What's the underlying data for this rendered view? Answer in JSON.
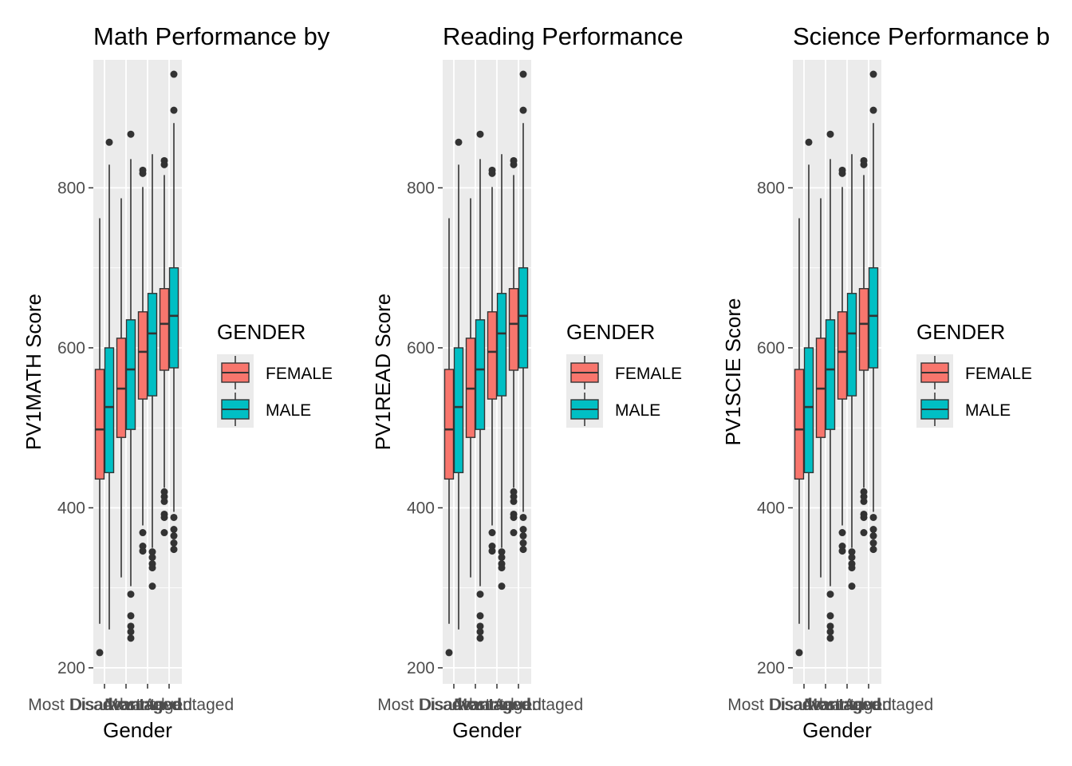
{
  "chart_data": [
    {
      "type": "boxplot",
      "title": "Math Performance by",
      "xlabel": "Gender",
      "ylabel": "PV1MATH Score",
      "y_ticks": [
        200,
        400,
        600,
        800
      ],
      "ylim": [
        180,
        960
      ],
      "x_tick_text": [
        "Most Disadvantaged",
        "Disadvantaged",
        "Advantaged",
        "Most Advantaged"
      ],
      "legend_title": "GENDER",
      "legend_entries": [
        "FEMALE",
        "MALE"
      ],
      "series_colors": {
        "FEMALE": "#F8766D",
        "MALE": "#00BFC4"
      },
      "boxes": [
        {
          "group": 0,
          "gender": "FEMALE",
          "whisker_low": 255,
          "q1": 436,
          "median": 498,
          "q3": 573,
          "whisker_high": 762,
          "outliers": [
            219
          ]
        },
        {
          "group": 0,
          "gender": "MALE",
          "whisker_low": 248,
          "q1": 444,
          "median": 526,
          "q3": 600,
          "whisker_high": 829,
          "outliers": [
            857
          ]
        },
        {
          "group": 1,
          "gender": "FEMALE",
          "whisker_low": 313,
          "q1": 488,
          "median": 549,
          "q3": 612,
          "whisker_high": 787,
          "outliers": []
        },
        {
          "group": 1,
          "gender": "MALE",
          "whisker_low": 302,
          "q1": 498,
          "median": 573,
          "q3": 635,
          "whisker_high": 836,
          "outliers": [
            867,
            292,
            265,
            252,
            245,
            237
          ]
        },
        {
          "group": 2,
          "gender": "FEMALE",
          "whisker_low": 378,
          "q1": 536,
          "median": 595,
          "q3": 645,
          "whisker_high": 801,
          "outliers": [
            822,
            818,
            369,
            352,
            346
          ]
        },
        {
          "group": 2,
          "gender": "MALE",
          "whisker_low": 350,
          "q1": 540,
          "median": 618,
          "q3": 668,
          "whisker_high": 842,
          "outliers": [
            345,
            338,
            330,
            325,
            302
          ]
        },
        {
          "group": 3,
          "gender": "FEMALE",
          "whisker_low": 425,
          "q1": 572,
          "median": 630,
          "q3": 674,
          "whisker_high": 816,
          "outliers": [
            834,
            829,
            420,
            414,
            408,
            392,
            388,
            369
          ]
        },
        {
          "group": 3,
          "gender": "MALE",
          "whisker_low": 395,
          "q1": 575,
          "median": 640,
          "q3": 700,
          "whisker_high": 881,
          "outliers": [
            942,
            897,
            388,
            373,
            365,
            356,
            348
          ]
        }
      ]
    },
    {
      "type": "boxplot",
      "title": "Reading Performance",
      "xlabel": "Gender",
      "ylabel": "PV1READ Score",
      "y_ticks": [
        200,
        400,
        600,
        800
      ],
      "ylim": [
        180,
        960
      ],
      "x_tick_text": [
        "Most Disadvantaged",
        "Disadvantaged",
        "Advantaged",
        "Most Advantaged"
      ],
      "legend_title": "GENDER",
      "legend_entries": [
        "FEMALE",
        "MALE"
      ],
      "series_colors": {
        "FEMALE": "#F8766D",
        "MALE": "#00BFC4"
      },
      "boxes": [
        {
          "group": 0,
          "gender": "FEMALE",
          "whisker_low": 255,
          "q1": 436,
          "median": 498,
          "q3": 573,
          "whisker_high": 762,
          "outliers": [
            219
          ]
        },
        {
          "group": 0,
          "gender": "MALE",
          "whisker_low": 248,
          "q1": 444,
          "median": 526,
          "q3": 600,
          "whisker_high": 829,
          "outliers": [
            857
          ]
        },
        {
          "group": 1,
          "gender": "FEMALE",
          "whisker_low": 313,
          "q1": 488,
          "median": 549,
          "q3": 612,
          "whisker_high": 787,
          "outliers": []
        },
        {
          "group": 1,
          "gender": "MALE",
          "whisker_low": 302,
          "q1": 498,
          "median": 573,
          "q3": 635,
          "whisker_high": 836,
          "outliers": [
            867,
            292,
            265,
            252,
            245,
            237
          ]
        },
        {
          "group": 2,
          "gender": "FEMALE",
          "whisker_low": 378,
          "q1": 536,
          "median": 595,
          "q3": 645,
          "whisker_high": 801,
          "outliers": [
            822,
            818,
            369,
            352,
            346
          ]
        },
        {
          "group": 2,
          "gender": "MALE",
          "whisker_low": 350,
          "q1": 540,
          "median": 618,
          "q3": 668,
          "whisker_high": 842,
          "outliers": [
            345,
            338,
            330,
            325,
            302
          ]
        },
        {
          "group": 3,
          "gender": "FEMALE",
          "whisker_low": 425,
          "q1": 572,
          "median": 630,
          "q3": 674,
          "whisker_high": 816,
          "outliers": [
            834,
            829,
            420,
            414,
            408,
            392,
            388,
            369
          ]
        },
        {
          "group": 3,
          "gender": "MALE",
          "whisker_low": 395,
          "q1": 575,
          "median": 640,
          "q3": 700,
          "whisker_high": 881,
          "outliers": [
            942,
            897,
            388,
            373,
            365,
            356,
            348
          ]
        }
      ]
    },
    {
      "type": "boxplot",
      "title": "Science Performance b",
      "xlabel": "Gender",
      "ylabel": "PV1SCIE Score",
      "y_ticks": [
        200,
        400,
        600,
        800
      ],
      "ylim": [
        180,
        960
      ],
      "x_tick_text": [
        "Most Disadvantaged",
        "Disadvantaged",
        "Advantaged",
        "Most Advantaged"
      ],
      "legend_title": "GENDER",
      "legend_entries": [
        "FEMALE",
        "MALE"
      ],
      "series_colors": {
        "FEMALE": "#F8766D",
        "MALE": "#00BFC4"
      },
      "boxes": [
        {
          "group": 0,
          "gender": "FEMALE",
          "whisker_low": 255,
          "q1": 436,
          "median": 498,
          "q3": 573,
          "whisker_high": 762,
          "outliers": [
            219
          ]
        },
        {
          "group": 0,
          "gender": "MALE",
          "whisker_low": 248,
          "q1": 444,
          "median": 526,
          "q3": 600,
          "whisker_high": 829,
          "outliers": [
            857
          ]
        },
        {
          "group": 1,
          "gender": "FEMALE",
          "whisker_low": 313,
          "q1": 488,
          "median": 549,
          "q3": 612,
          "whisker_high": 787,
          "outliers": []
        },
        {
          "group": 1,
          "gender": "MALE",
          "whisker_low": 302,
          "q1": 498,
          "median": 573,
          "q3": 635,
          "whisker_high": 836,
          "outliers": [
            867,
            292,
            265,
            252,
            245,
            237
          ]
        },
        {
          "group": 2,
          "gender": "FEMALE",
          "whisker_low": 378,
          "q1": 536,
          "median": 595,
          "q3": 645,
          "whisker_high": 801,
          "outliers": [
            822,
            818,
            369,
            352,
            346
          ]
        },
        {
          "group": 2,
          "gender": "MALE",
          "whisker_low": 350,
          "q1": 540,
          "median": 618,
          "q3": 668,
          "whisker_high": 842,
          "outliers": [
            345,
            338,
            330,
            325,
            302
          ]
        },
        {
          "group": 3,
          "gender": "FEMALE",
          "whisker_low": 425,
          "q1": 572,
          "median": 630,
          "q3": 674,
          "whisker_high": 816,
          "outliers": [
            834,
            829,
            420,
            414,
            408,
            392,
            388,
            369
          ]
        },
        {
          "group": 3,
          "gender": "MALE",
          "whisker_low": 395,
          "q1": 575,
          "median": 640,
          "q3": 700,
          "whisker_high": 881,
          "outliers": [
            942,
            897,
            388,
            373,
            365,
            356,
            348
          ]
        }
      ]
    }
  ]
}
